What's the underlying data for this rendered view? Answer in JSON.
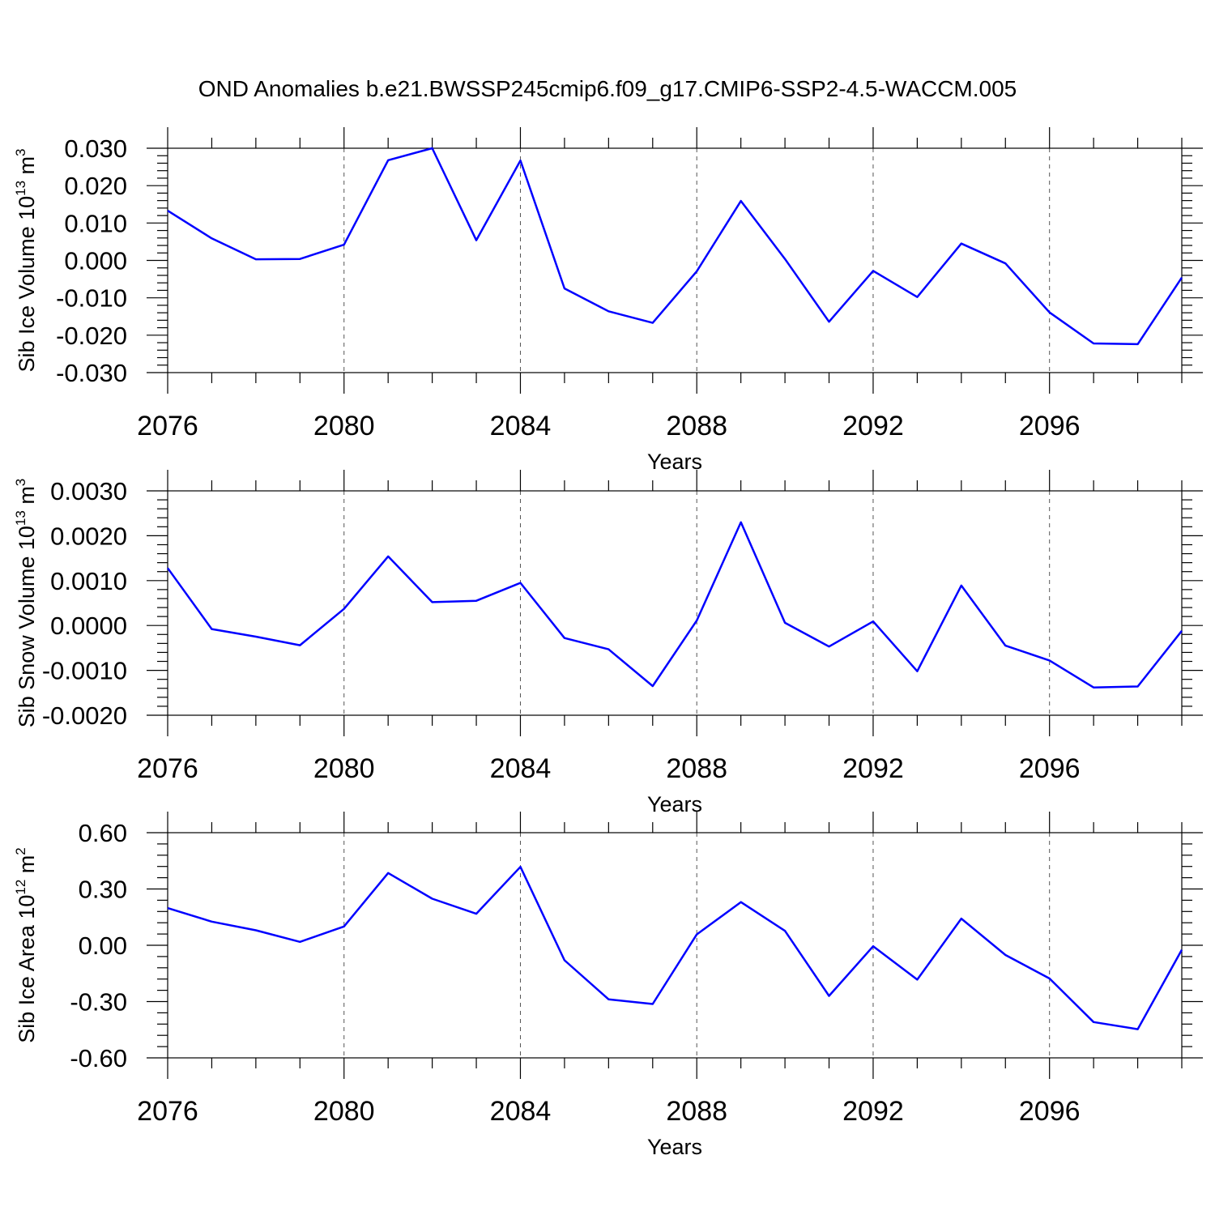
{
  "title": "OND Anomalies b.e21.BWSSP245cmip6.f09_g17.CMIP6-SSP2-4.5-WACCM.005",
  "chart_data": [
    {
      "type": "line",
      "ylabel": "Sib Ice Volume 10",
      "ylabel_exp": "13",
      "ylabel_unit": " m",
      "ylabel_unit_exp": "3",
      "xlabel": "Years",
      "xlim": [
        2076,
        2099
      ],
      "ylim": [
        -0.03,
        0.03
      ],
      "yticks": [
        "0.030",
        "0.020",
        "0.010",
        "0.000",
        "-0.010",
        "-0.020",
        "-0.030"
      ],
      "ytick_values": [
        0.03,
        0.02,
        0.01,
        0.0,
        -0.01,
        -0.02,
        -0.03
      ],
      "xticks": [
        "2076",
        "2080",
        "2084",
        "2088",
        "2092",
        "2096"
      ],
      "xtick_values": [
        2076,
        2080,
        2084,
        2088,
        2092,
        2096
      ],
      "grid": "dashed vertical at major x ticks",
      "series_color": "#0000ff",
      "x": [
        2076,
        2077,
        2078,
        2079,
        2080,
        2081,
        2082,
        2083,
        2084,
        2085,
        2086,
        2087,
        2088,
        2089,
        2090,
        2091,
        2092,
        2093,
        2094,
        2095,
        2096,
        2097,
        2098,
        2099
      ],
      "y": [
        0.0133,
        0.0059,
        0.0003,
        0.0004,
        0.0042,
        0.0268,
        0.03,
        0.0054,
        0.0267,
        -0.0075,
        -0.0136,
        -0.0167,
        -0.0029,
        0.0159,
        0.0004,
        -0.0164,
        -0.0028,
        -0.0098,
        0.0045,
        -0.0008,
        -0.0139,
        -0.0222,
        -0.0224,
        -0.0046
      ]
    },
    {
      "type": "line",
      "ylabel": "Sib Snow Volume 10",
      "ylabel_exp": "13",
      "ylabel_unit": " m",
      "ylabel_unit_exp": "3",
      "xlabel": "Years",
      "xlim": [
        2076,
        2099
      ],
      "ylim": [
        -0.002,
        0.003
      ],
      "yticks": [
        "0.0030",
        "0.0020",
        "0.0010",
        "0.0000",
        "-0.0010",
        "-0.0020"
      ],
      "ytick_values": [
        0.003,
        0.002,
        0.001,
        0.0,
        -0.001,
        -0.002
      ],
      "xticks": [
        "2076",
        "2080",
        "2084",
        "2088",
        "2092",
        "2096"
      ],
      "xtick_values": [
        2076,
        2080,
        2084,
        2088,
        2092,
        2096
      ],
      "grid": "dashed vertical at major x ticks",
      "series_color": "#0000ff",
      "x": [
        2076,
        2077,
        2078,
        2079,
        2080,
        2081,
        2082,
        2083,
        2084,
        2085,
        2086,
        2087,
        2088,
        2089,
        2090,
        2091,
        2092,
        2093,
        2094,
        2095,
        2096,
        2097,
        2098,
        2099
      ],
      "y": [
        0.00128,
        -8e-05,
        -0.00025,
        -0.00044,
        0.00037,
        0.00154,
        0.00052,
        0.00055,
        0.00095,
        -0.00028,
        -0.00053,
        -0.00135,
        0.00011,
        0.0023,
        6e-05,
        -0.00047,
        9e-05,
        -0.00102,
        0.00089,
        -0.00045,
        -0.00078,
        -0.00138,
        -0.00136,
        -0.00012
      ]
    },
    {
      "type": "line",
      "ylabel": "Sib Ice Area 10",
      "ylabel_exp": "12",
      "ylabel_unit": " m",
      "ylabel_unit_exp": "2",
      "xlabel": "Years",
      "xlim": [
        2076,
        2099
      ],
      "ylim": [
        -0.6,
        0.6
      ],
      "yticks": [
        "0.60",
        "0.30",
        "0.00",
        "-0.30",
        "-0.60"
      ],
      "ytick_values": [
        0.6,
        0.3,
        0.0,
        -0.3,
        -0.6
      ],
      "xticks": [
        "2076",
        "2080",
        "2084",
        "2088",
        "2092",
        "2096"
      ],
      "xtick_values": [
        2076,
        2080,
        2084,
        2088,
        2092,
        2096
      ],
      "grid": "dashed vertical at major x ticks",
      "series_color": "#0000ff",
      "x": [
        2076,
        2077,
        2078,
        2079,
        2080,
        2081,
        2082,
        2083,
        2084,
        2085,
        2086,
        2087,
        2088,
        2089,
        2090,
        2091,
        2092,
        2093,
        2094,
        2095,
        2096,
        2097,
        2098,
        2099
      ],
      "y": [
        0.198,
        0.126,
        0.08,
        0.018,
        0.1,
        0.385,
        0.248,
        0.168,
        0.418,
        -0.08,
        -0.288,
        -0.313,
        0.058,
        0.23,
        0.077,
        -0.27,
        -0.005,
        -0.183,
        0.142,
        -0.052,
        -0.177,
        -0.409,
        -0.447,
        -0.024
      ]
    }
  ]
}
